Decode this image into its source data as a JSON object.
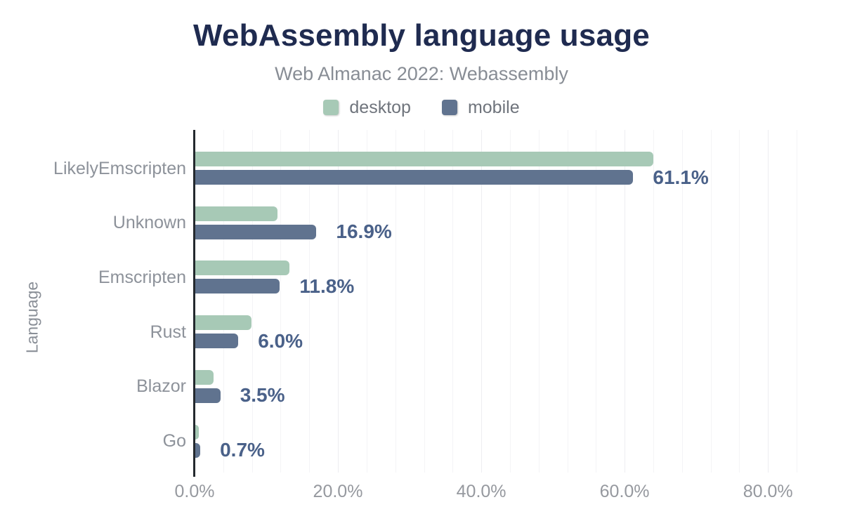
{
  "chart_data": {
    "type": "bar",
    "orientation": "horizontal",
    "title": "WebAssembly language usage",
    "subtitle": "Web Almanac 2022: Webassembly",
    "ylabel": "Language",
    "categories": [
      "LikelyEmscripten",
      "Unknown",
      "Emscripten",
      "Rust",
      "Blazor",
      "Go"
    ],
    "series": [
      {
        "name": "desktop",
        "color": "#a7c9b6",
        "values": [
          63.9,
          11.5,
          13.1,
          7.8,
          2.5,
          0.5
        ]
      },
      {
        "name": "mobile",
        "color": "#60738f",
        "values": [
          61.1,
          16.9,
          11.8,
          6.0,
          3.5,
          0.7
        ]
      }
    ],
    "bar_labels": [
      "61.1%",
      "16.9%",
      "11.8%",
      "6.0%",
      "3.5%",
      "0.7%"
    ],
    "bar_labels_refer_to": "mobile",
    "x_tick_labels": [
      "0.0%",
      "20.0%",
      "40.0%",
      "60.0%",
      "80.0%"
    ],
    "x_tick_values": [
      0,
      20,
      40,
      60,
      80
    ],
    "xlim": [
      0,
      88.9
    ],
    "grid": {
      "on": true,
      "minor_step_percent": 4
    },
    "legend_position": "top",
    "colors": {
      "title": "#1f2b50",
      "subtitle_gray": "#888d95",
      "value_label": "#4a6189",
      "axis_line": "#24292e",
      "background": "#ffffff"
    }
  }
}
